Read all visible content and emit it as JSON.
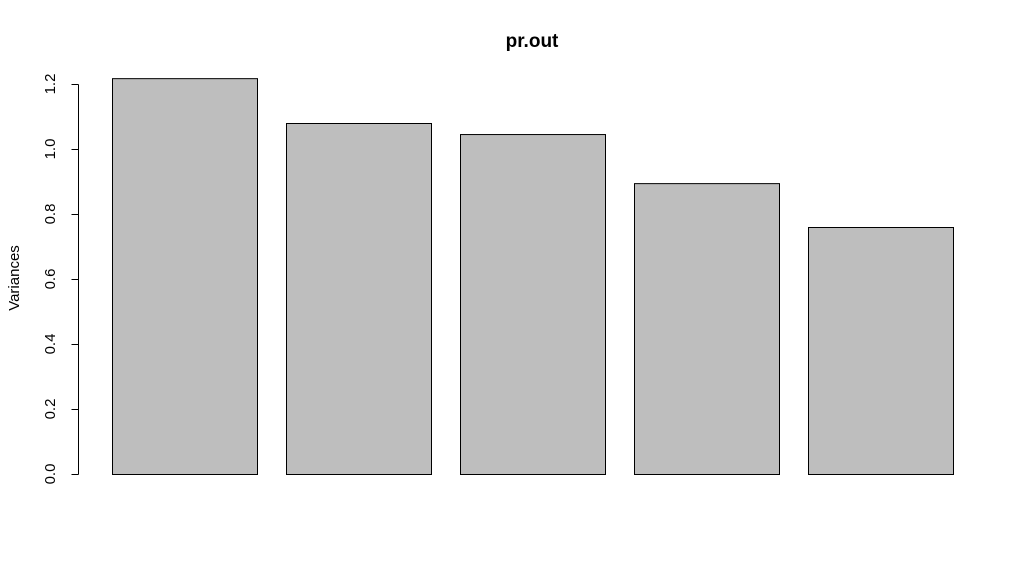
{
  "chart_data": {
    "type": "bar",
    "title": "pr.out",
    "xlabel": "",
    "ylabel": "Variances",
    "categories": [
      "",
      "",
      "",
      "",
      ""
    ],
    "values": [
      1.218,
      1.08,
      1.046,
      0.895,
      0.76
    ],
    "ylim": [
      0,
      1.2
    ],
    "yticks": [
      0.0,
      0.2,
      0.4,
      0.6,
      0.8,
      1.0,
      1.2
    ],
    "ytick_labels": [
      "0.0",
      "0.2",
      "0.4",
      "0.6",
      "0.8",
      "1.0",
      "1.2"
    ],
    "grid": false,
    "bar_color": "#bebebe",
    "edge_color": "#000000"
  }
}
